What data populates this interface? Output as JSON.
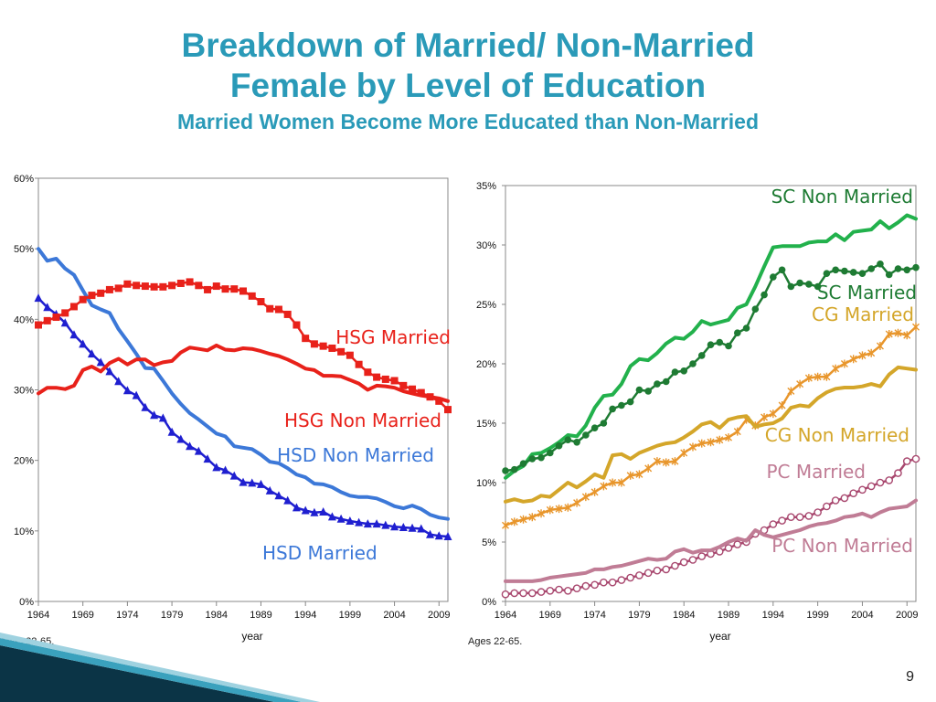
{
  "slide": {
    "title_line1": "Breakdown of Married/ Non-Married",
    "title_line2": "Female by Level of Education",
    "subtitle": "Married Women Become More Educated than Non-Married",
    "footnote_left": "Ages 22-65.",
    "footnote_right": "Ages 22-65.",
    "page_number": "9",
    "title_color": "#2a9ab8"
  },
  "chart_data": [
    {
      "type": "line",
      "xlabel": "year",
      "ylabel": "",
      "ylim": [
        0,
        60
      ],
      "y_ticks": [
        "0%",
        "10%",
        "20%",
        "30%",
        "40%",
        "50%",
        "60%"
      ],
      "x_ticks": [
        "1964",
        "1969",
        "1974",
        "1979",
        "1984",
        "1989",
        "1994",
        "1999",
        "2004",
        "2009"
      ],
      "x": [
        1964,
        1965,
        1966,
        1967,
        1968,
        1969,
        1970,
        1971,
        1972,
        1973,
        1974,
        1975,
        1976,
        1977,
        1978,
        1979,
        1980,
        1981,
        1982,
        1983,
        1984,
        1985,
        1986,
        1987,
        1988,
        1989,
        1990,
        1991,
        1992,
        1993,
        1994,
        1995,
        1996,
        1997,
        1998,
        1999,
        2000,
        2001,
        2002,
        2003,
        2004,
        2005,
        2006,
        2007,
        2008,
        2009,
        2010
      ],
      "series": [
        {
          "name": "HSD Non Married",
          "color": "#3c78d8",
          "marker": "none",
          "values": [
            50.0,
            48.3,
            48.6,
            47.2,
            46.3,
            44.1,
            42.0,
            41.4,
            40.9,
            38.6,
            36.9,
            35.1,
            33.1,
            33.0,
            31.3,
            29.5,
            28.0,
            26.7,
            25.8,
            24.8,
            23.8,
            23.4,
            22.0,
            21.8,
            21.6,
            20.8,
            19.8,
            19.6,
            18.9,
            18.0,
            17.6,
            16.7,
            16.6,
            16.2,
            15.5,
            15.0,
            14.8,
            14.8,
            14.6,
            14.1,
            13.5,
            13.2,
            13.6,
            13.1,
            12.3,
            11.9,
            11.7
          ]
        },
        {
          "name": "HSD Married",
          "color": "#1f1fd0",
          "marker": "triangle",
          "values": [
            43.0,
            41.7,
            40.7,
            39.5,
            37.8,
            36.5,
            35.1,
            33.9,
            32.6,
            31.2,
            29.9,
            29.2,
            27.5,
            26.4,
            26.0,
            24.0,
            23.0,
            22.0,
            21.3,
            20.2,
            19.0,
            18.6,
            17.8,
            16.9,
            16.8,
            16.6,
            15.7,
            15.0,
            14.3,
            13.3,
            12.9,
            12.6,
            12.7,
            12.0,
            11.7,
            11.4,
            11.2,
            11.0,
            11.0,
            10.8,
            10.6,
            10.5,
            10.4,
            10.3,
            9.5,
            9.3,
            9.2
          ]
        },
        {
          "name": "HSG Married",
          "color": "#e8211a",
          "marker": "square",
          "values": [
            39.2,
            39.8,
            40.3,
            40.9,
            41.8,
            42.8,
            43.4,
            43.7,
            44.2,
            44.4,
            45.0,
            44.8,
            44.7,
            44.6,
            44.6,
            44.8,
            45.1,
            45.3,
            44.8,
            44.2,
            44.7,
            44.3,
            44.3,
            44.0,
            43.3,
            42.5,
            41.5,
            41.4,
            40.7,
            39.2,
            37.3,
            36.5,
            36.2,
            35.9,
            35.4,
            34.9,
            33.6,
            32.5,
            31.8,
            31.5,
            31.3,
            30.6,
            30.1,
            29.6,
            29.0,
            28.4,
            27.2
          ]
        },
        {
          "name": "HSG Non Married",
          "color": "#e8211a",
          "marker": "none",
          "values": [
            29.5,
            30.3,
            30.3,
            30.1,
            30.6,
            32.8,
            33.3,
            32.6,
            33.8,
            34.4,
            33.6,
            34.3,
            34.3,
            33.5,
            33.9,
            34.1,
            35.3,
            36.0,
            35.8,
            35.6,
            36.3,
            35.7,
            35.6,
            35.9,
            35.8,
            35.5,
            35.1,
            34.8,
            34.3,
            33.7,
            33.0,
            32.8,
            32.0,
            32.0,
            31.9,
            31.4,
            30.9,
            30.0,
            30.6,
            30.5,
            30.3,
            29.8,
            29.5,
            29.2,
            29.0,
            28.8,
            28.4
          ]
        }
      ],
      "annotations": [
        "HSG Married",
        "HSG Non Married",
        "HSD Non Married",
        "HSD Married"
      ]
    },
    {
      "type": "line",
      "xlabel": "year",
      "ylabel": "",
      "ylim": [
        0,
        35
      ],
      "y_ticks": [
        "0%",
        "5%",
        "10%",
        "15%",
        "20%",
        "25%",
        "30%",
        "35%"
      ],
      "x_ticks": [
        "1964",
        "1969",
        "1974",
        "1979",
        "1984",
        "1989",
        "1994",
        "1999",
        "2004",
        "2009"
      ],
      "x": [
        1964,
        1965,
        1966,
        1967,
        1968,
        1969,
        1970,
        1971,
        1972,
        1973,
        1974,
        1975,
        1976,
        1977,
        1978,
        1979,
        1980,
        1981,
        1982,
        1983,
        1984,
        1985,
        1986,
        1987,
        1988,
        1989,
        1990,
        1991,
        1992,
        1993,
        1994,
        1995,
        1996,
        1997,
        1998,
        1999,
        2000,
        2001,
        2002,
        2003,
        2004,
        2005,
        2006,
        2007,
        2008,
        2009,
        2010
      ],
      "series": [
        {
          "name": "SC Non Married",
          "color": "#22b14c",
          "marker": "none",
          "values": [
            10.4,
            11.0,
            11.4,
            12.4,
            12.5,
            12.9,
            13.4,
            14.0,
            13.9,
            14.8,
            16.3,
            17.3,
            17.4,
            18.3,
            19.8,
            20.4,
            20.3,
            20.9,
            21.7,
            22.2,
            22.1,
            22.7,
            23.6,
            23.3,
            23.5,
            23.7,
            24.7,
            25.0,
            26.5,
            28.2,
            29.8,
            29.9,
            29.9,
            29.9,
            30.2,
            30.3,
            30.3,
            30.9,
            30.4,
            31.1,
            31.2,
            31.3,
            32.0,
            31.4,
            31.9,
            32.5,
            32.2
          ]
        },
        {
          "name": "SC Married",
          "color": "#1e7b33",
          "marker": "dot",
          "values": [
            11.0,
            11.1,
            11.6,
            12.0,
            12.1,
            12.5,
            13.1,
            13.6,
            13.4,
            14.0,
            14.6,
            15.0,
            16.2,
            16.5,
            16.8,
            17.8,
            17.7,
            18.3,
            18.5,
            19.3,
            19.4,
            20.0,
            20.7,
            21.6,
            21.8,
            21.5,
            22.6,
            23.0,
            24.6,
            25.8,
            27.3,
            27.9,
            26.5,
            26.8,
            26.7,
            26.5,
            27.6,
            27.9,
            27.8,
            27.7,
            27.6,
            28.0,
            28.4,
            27.5,
            28.0,
            27.9,
            28.1
          ]
        },
        {
          "name": "CG Married",
          "color": "#e8962c",
          "marker": "star",
          "values": [
            6.4,
            6.7,
            6.9,
            7.1,
            7.4,
            7.7,
            7.8,
            7.9,
            8.3,
            8.8,
            9.2,
            9.7,
            10.0,
            10.0,
            10.6,
            10.7,
            11.2,
            11.8,
            11.7,
            11.8,
            12.5,
            13.0,
            13.3,
            13.4,
            13.6,
            13.8,
            14.3,
            15.3,
            14.8,
            15.5,
            15.8,
            16.5,
            17.7,
            18.3,
            18.8,
            18.9,
            18.9,
            19.6,
            20.0,
            20.4,
            20.7,
            20.9,
            21.5,
            22.5,
            22.6,
            22.4,
            23.1
          ]
        },
        {
          "name": "CG Non Married",
          "color": "#d4a62a",
          "marker": "none",
          "values": [
            8.4,
            8.6,
            8.4,
            8.5,
            8.9,
            8.8,
            9.4,
            10.0,
            9.6,
            10.1,
            10.7,
            10.4,
            12.3,
            12.4,
            12.0,
            12.5,
            12.8,
            13.1,
            13.3,
            13.4,
            13.8,
            14.3,
            14.9,
            15.1,
            14.6,
            15.3,
            15.5,
            15.6,
            14.7,
            14.9,
            15.0,
            15.4,
            16.3,
            16.5,
            16.4,
            17.1,
            17.6,
            17.9,
            18.0,
            18.0,
            18.1,
            18.3,
            18.1,
            19.1,
            19.7,
            19.6,
            19.5
          ]
        },
        {
          "name": "PC Married",
          "color": "#a8476e",
          "marker": "circle",
          "values": [
            0.6,
            0.7,
            0.7,
            0.7,
            0.8,
            0.9,
            1.0,
            0.9,
            1.1,
            1.3,
            1.4,
            1.6,
            1.6,
            1.8,
            2.0,
            2.2,
            2.4,
            2.6,
            2.7,
            3.0,
            3.3,
            3.5,
            3.8,
            4.0,
            4.2,
            4.5,
            4.8,
            5.0,
            5.7,
            6.0,
            6.5,
            6.8,
            7.1,
            7.1,
            7.2,
            7.5,
            8.0,
            8.5,
            8.7,
            9.1,
            9.4,
            9.7,
            10.0,
            10.2,
            10.8,
            11.8,
            12.0
          ]
        },
        {
          "name": "PC Non Married",
          "color": "#c07c95",
          "marker": "none",
          "values": [
            1.7,
            1.7,
            1.7,
            1.7,
            1.8,
            2.0,
            2.1,
            2.2,
            2.3,
            2.4,
            2.7,
            2.7,
            2.9,
            3.0,
            3.2,
            3.4,
            3.6,
            3.5,
            3.6,
            4.2,
            4.4,
            4.1,
            4.3,
            4.3,
            4.6,
            5.0,
            5.3,
            5.1,
            6.0,
            5.6,
            5.4,
            5.6,
            5.8,
            6.0,
            6.3,
            6.5,
            6.6,
            6.8,
            7.1,
            7.2,
            7.4,
            7.1,
            7.5,
            7.8,
            7.9,
            8.0,
            8.5
          ]
        }
      ],
      "annotations": [
        "SC Non Married",
        "SC Married",
        "CG Married",
        "CG Non Married",
        "PC Married",
        "PC Non Married"
      ]
    }
  ]
}
